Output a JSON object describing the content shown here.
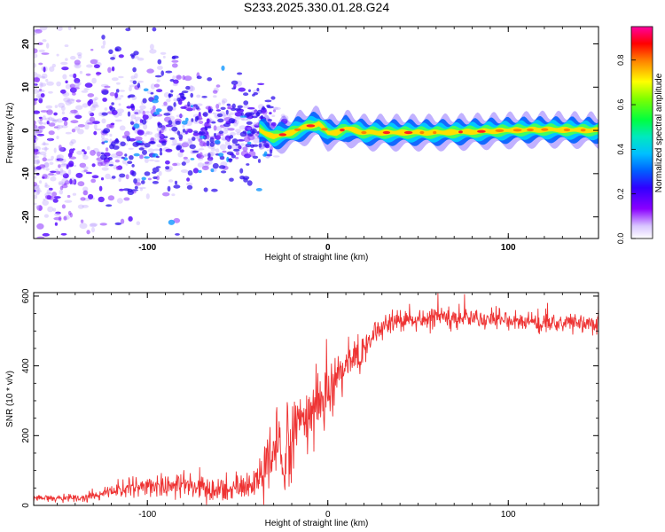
{
  "title": "S233.2025.330.01.28.G24",
  "chart_data": [
    {
      "type": "heatmap",
      "name": "spectrogram",
      "xlabel": "Height of straight line (km)",
      "ylabel": "Frequency (Hz)",
      "xlim": [
        -163,
        150
      ],
      "ylim": [
        -25,
        24
      ],
      "xticks": [
        -100,
        0,
        100
      ],
      "xtick_labels": [
        "-100",
        "0",
        "100"
      ],
      "yticks": [
        -20,
        -10,
        0,
        10,
        20
      ],
      "ytick_labels": [
        "-20",
        "-10",
        "0",
        "10",
        "20"
      ],
      "ridge": {
        "height_km": [
          -40,
          -30,
          -20,
          -15,
          -10,
          -5,
          0,
          5,
          10,
          20,
          40,
          60,
          80,
          100,
          120,
          150
        ],
        "frequency_hz": [
          0.5,
          -1.5,
          -0.5,
          0.5,
          1.0,
          1.5,
          -0.5,
          -0.5,
          0.5,
          -0.5,
          -0.5,
          -0.5,
          -0.3,
          0.0,
          0.2,
          0.0
        ]
      },
      "colorbar": {
        "label": "Normalized spectral amplitude",
        "range": [
          0,
          0.95
        ],
        "ticks": [
          0.0,
          0.2,
          0.4,
          0.6,
          0.8
        ],
        "tick_labels": [
          "0.0",
          "0.2",
          "0.4",
          "0.6",
          "0.8"
        ],
        "colors": [
          "#ffffff",
          "#8a00ff",
          "#3000ff",
          "#0090ff",
          "#00e0e0",
          "#00ff40",
          "#80ff00",
          "#ffff00",
          "#ff8000",
          "#ff0000",
          "#ff00a0"
        ]
      }
    },
    {
      "type": "line",
      "name": "snr",
      "xlabel": "Height of straight line (km)",
      "ylabel": "SNR (10 * v/v)",
      "xlim": [
        -163,
        150
      ],
      "ylim": [
        0,
        610
      ],
      "xticks": [
        -100,
        0,
        100
      ],
      "xtick_labels": [
        "-100",
        "0",
        "100"
      ],
      "yticks": [
        0,
        200,
        400,
        600
      ],
      "ytick_labels": [
        "0",
        "200",
        "400",
        "600"
      ],
      "color": "#ee3333",
      "x": [
        -163,
        -150,
        -140,
        -130,
        -120,
        -110,
        -100,
        -90,
        -80,
        -70,
        -60,
        -50,
        -40,
        -35,
        -30,
        -25,
        -20,
        -15,
        -10,
        -5,
        0,
        5,
        10,
        15,
        20,
        25,
        30,
        40,
        50,
        60,
        70,
        80,
        90,
        100,
        110,
        120,
        130,
        140,
        150
      ],
      "y": [
        20,
        20,
        20,
        25,
        40,
        50,
        55,
        60,
        58,
        50,
        40,
        45,
        60,
        90,
        130,
        160,
        190,
        220,
        260,
        290,
        320,
        360,
        390,
        420,
        450,
        480,
        510,
        530,
        535,
        540,
        540,
        538,
        535,
        530,
        528,
        525,
        522,
        520,
        520
      ],
      "noise": [
        5,
        5,
        5,
        6,
        10,
        14,
        15,
        18,
        18,
        16,
        14,
        16,
        25,
        45,
        60,
        70,
        60,
        55,
        50,
        50,
        45,
        40,
        35,
        35,
        30,
        25,
        20,
        15,
        15,
        15,
        15,
        15,
        15,
        14,
        14,
        14,
        14,
        14,
        14
      ]
    }
  ]
}
